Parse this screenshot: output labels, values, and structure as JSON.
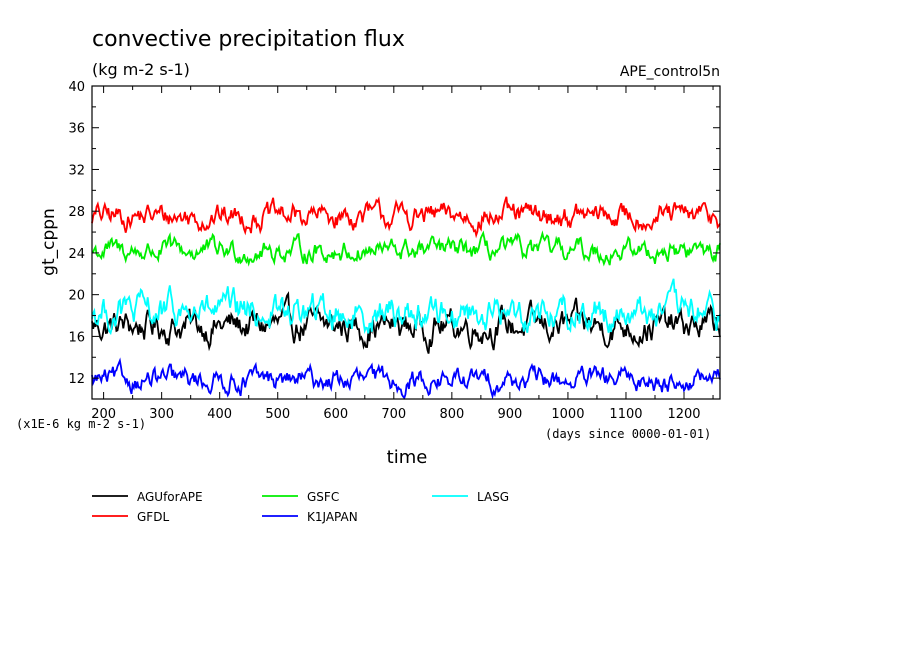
{
  "chart_data": {
    "type": "line",
    "title": "convective precipitation flux",
    "subtitle": "(kg m-2 s-1)",
    "run_label": "APE_control5n",
    "ylabel": "gt_cppn",
    "xlabel": "time",
    "x_unit_note": "(days since 0000-01-01)",
    "y_scale_note": "(x1E-6 kg m-2 s-1)",
    "xlim": [
      180,
      1262
    ],
    "ylim": [
      10,
      40
    ],
    "x_ticks": [
      200,
      300,
      400,
      500,
      600,
      700,
      800,
      900,
      1000,
      1100,
      1200
    ],
    "y_ticks": [
      12,
      16,
      20,
      24,
      28,
      32,
      36,
      40
    ],
    "grid": false,
    "legend_position": "bottom-left",
    "x_step": 2,
    "series": [
      {
        "name": "AGUforAPE",
        "color": "#000000",
        "mean": 17.0,
        "amplitude": 1.3
      },
      {
        "name": "GFDL",
        "color": "#ff0000",
        "mean": 27.5,
        "amplitude": 1.0
      },
      {
        "name": "GSFC",
        "color": "#00ee00",
        "mean": 24.2,
        "amplitude": 0.9
      },
      {
        "name": "K1JAPAN",
        "color": "#0000ff",
        "mean": 11.8,
        "amplitude": 0.9
      },
      {
        "name": "LASG",
        "color": "#00ffff",
        "mean": 18.3,
        "amplitude": 1.4
      }
    ]
  }
}
